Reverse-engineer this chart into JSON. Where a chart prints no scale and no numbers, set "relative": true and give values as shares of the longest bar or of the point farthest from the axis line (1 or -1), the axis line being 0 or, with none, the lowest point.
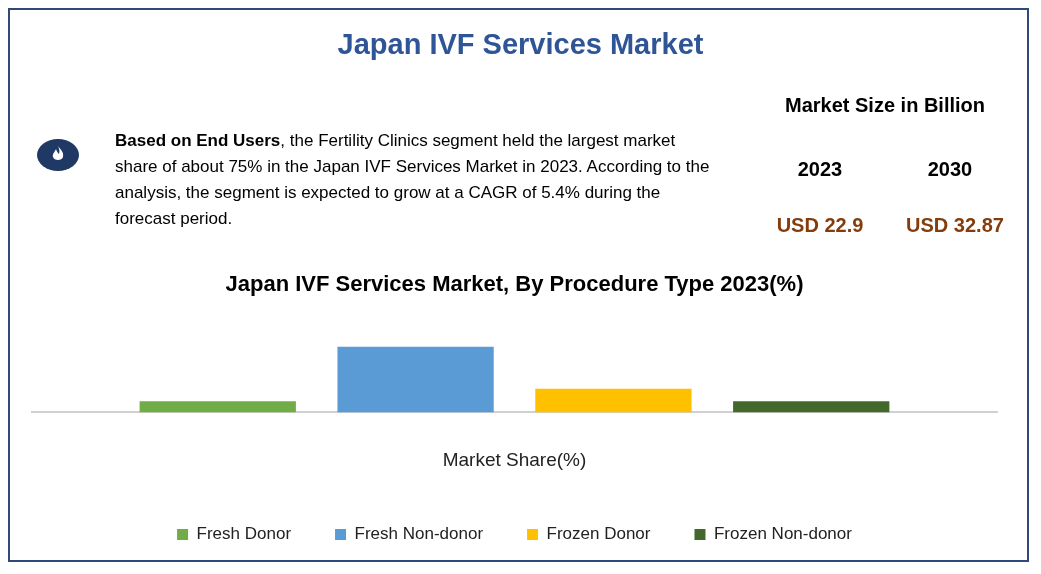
{
  "chart_data": {
    "type": "bar",
    "relative": true,
    "title": "Japan IVF Services Market, By Procedure Type 2023(%)",
    "xlabel": "Market Share(%)",
    "categories": [
      null
    ],
    "series": [
      {
        "name": "Fresh Donor",
        "color": "#70ad47",
        "values": [
          0.17
        ]
      },
      {
        "name": "Fresh Non-donor",
        "color": "#5b9bd5",
        "values": [
          1
        ]
      },
      {
        "name": "Frozen Donor",
        "color": "#ffc000",
        "values": [
          0.36
        ]
      },
      {
        "name": "Frozen Non-donor",
        "color": "#43682b",
        "values": [
          0.17
        ]
      }
    ],
    "legend": "bottom",
    "grid": false,
    "annotations": [
      "Japan IVF Services Market",
      "Based on End Users",
      ", the Fertility Clinics segment held the largest market share of about 75% in the Japan IVF Services Market in 2023. According to the analysis, the segment is expected to grow at a CAGR of 5.4% during the forecast period.",
      "Market Size in Billion",
      "2023",
      "2030",
      "USD 22.9",
      "USD 32.87"
    ]
  }
}
